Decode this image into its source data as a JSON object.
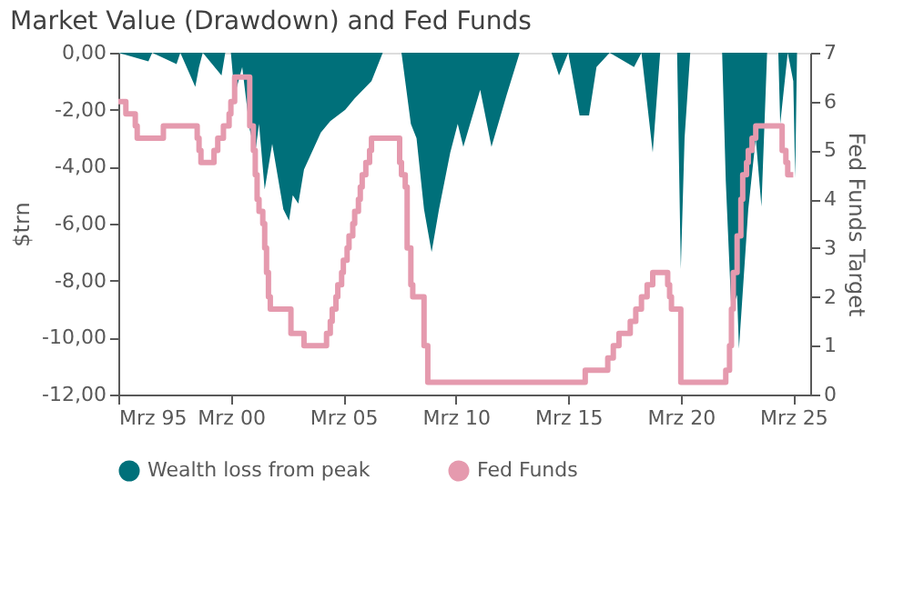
{
  "chart_data": {
    "type": "area",
    "title": "Market Value (Drawdown) and Fed Funds",
    "ylabel": "$trn",
    "y2label": "Fed Funds Target",
    "xlim": [
      "1995-03",
      "2025-12"
    ],
    "xticks": [
      {
        "value": "1995-03",
        "label": "Mrz 95"
      },
      {
        "value": "2000-03",
        "label": "Mrz 00"
      },
      {
        "value": "2005-03",
        "label": "Mrz 05"
      },
      {
        "value": "2010-03",
        "label": "Mrz 10"
      },
      {
        "value": "2015-03",
        "label": "Mrz 15"
      },
      {
        "value": "2020-03",
        "label": "Mrz 20"
      },
      {
        "value": "2025-03",
        "label": "Mrz 25"
      }
    ],
    "ylim": [
      -12,
      0
    ],
    "yticks": [
      {
        "value": 0,
        "label": "0,00"
      },
      {
        "value": -2,
        "label": "-2,00"
      },
      {
        "value": -4,
        "label": "-4,00"
      },
      {
        "value": -6,
        "label": "-6,00"
      },
      {
        "value": -8,
        "label": "-8,00"
      },
      {
        "value": -10,
        "label": "-10,00"
      },
      {
        "value": -12,
        "label": "-12,00"
      }
    ],
    "y2lim": [
      0,
      7
    ],
    "y2ticks": [
      0,
      1,
      2,
      3,
      4,
      5,
      6,
      7
    ],
    "grid": false,
    "legend": "bottom",
    "series": [
      {
        "name": "Wealth loss from peak",
        "color": "#00707a",
        "x": [
          "1995-03",
          "1996-07",
          "1996-09",
          "1997-10",
          "1997-12",
          "1998-08",
          "1998-10",
          "1998-12",
          "1999-10",
          "1999-12",
          "2000-03",
          "2000-05",
          "2000-09",
          "2001-01",
          "2001-04",
          "2001-06",
          "2001-09",
          "2002-01",
          "2002-07",
          "2002-10",
          "2002-12",
          "2003-03",
          "2003-06",
          "2004-03",
          "2004-08",
          "2005-04",
          "2005-09",
          "2006-06",
          "2006-12",
          "2007-10",
          "2008-03",
          "2008-06",
          "2008-10",
          "2009-02",
          "2009-06",
          "2009-12",
          "2010-04",
          "2010-07",
          "2011-04",
          "2011-10",
          "2012-06",
          "2013-01",
          "2014-06",
          "2014-10",
          "2015-03",
          "2015-09",
          "2016-02",
          "2016-06",
          "2017-01",
          "2018-02",
          "2018-06",
          "2018-12",
          "2019-04",
          "2020-01",
          "2020-03",
          "2020-05",
          "2020-08",
          "2021-06",
          "2022-01",
          "2022-03",
          "2022-06",
          "2022-09",
          "2022-10",
          "2023-03",
          "2023-07",
          "2023-10",
          "2024-01",
          "2024-07",
          "2024-08",
          "2024-12",
          "2025-03",
          "2025-04",
          "2025-05"
        ],
        "values": [
          0,
          -0.3,
          0,
          -0.4,
          0,
          -1.2,
          -0.5,
          0,
          -0.8,
          0,
          0,
          -1.5,
          -0.5,
          -2.7,
          -3.5,
          -2.5,
          -4.8,
          -3.2,
          -5.5,
          -5.9,
          -5.0,
          -5.3,
          -4.1,
          -2.8,
          -2.4,
          -2.0,
          -1.6,
          -1.0,
          0,
          0,
          -2.5,
          -3.0,
          -5.5,
          -7.0,
          -5.5,
          -3.5,
          -2.5,
          -3.3,
          -1.3,
          -3.3,
          -1.5,
          0,
          0,
          -0.8,
          0,
          -2.2,
          -2.2,
          -0.5,
          0,
          -0.5,
          0,
          -3.5,
          0,
          0,
          -7.6,
          -3.0,
          0,
          0,
          0,
          -4.5,
          -9.1,
          -8.5,
          -10.4,
          -5.5,
          -3.0,
          -5.4,
          0,
          0,
          -2.5,
          0,
          -1.0,
          -4.4,
          0
        ]
      },
      {
        "name": "Fed Funds",
        "type": "step",
        "axis": "y2",
        "color": "#e59aae",
        "x": [
          "1995-03",
          "1995-07",
          "1995-12",
          "1996-01",
          "1997-03",
          "1998-09",
          "1998-10",
          "1998-11",
          "1999-06",
          "1999-08",
          "1999-11",
          "2000-02",
          "2000-03",
          "2000-05",
          "2001-01",
          "2001-03",
          "2001-04",
          "2001-05",
          "2001-06",
          "2001-08",
          "2001-09",
          "2001-10",
          "2001-11",
          "2001-12",
          "2002-11",
          "2003-06",
          "2004-06",
          "2004-08",
          "2004-09",
          "2004-11",
          "2004-12",
          "2005-02",
          "2005-03",
          "2005-05",
          "2005-06",
          "2005-08",
          "2005-09",
          "2005-11",
          "2005-12",
          "2006-01",
          "2006-03",
          "2006-05",
          "2006-06",
          "2007-09",
          "2007-10",
          "2007-12",
          "2008-01",
          "2008-03",
          "2008-04",
          "2008-10",
          "2008-12",
          "2015-12",
          "2016-12",
          "2017-03",
          "2017-06",
          "2017-12",
          "2018-03",
          "2018-06",
          "2018-09",
          "2018-12",
          "2019-08",
          "2019-09",
          "2019-10",
          "2020-03",
          "2022-03",
          "2022-05",
          "2022-06",
          "2022-07",
          "2022-09",
          "2022-11",
          "2022-12",
          "2023-02",
          "2023-03",
          "2023-05",
          "2023-07",
          "2024-09",
          "2024-11",
          "2024-12",
          "2025-03"
        ],
        "values": [
          6.0,
          5.75,
          5.5,
          5.25,
          5.5,
          5.25,
          5.0,
          4.75,
          5.0,
          5.25,
          5.5,
          5.75,
          6.0,
          6.5,
          5.5,
          5.0,
          4.5,
          4.0,
          3.75,
          3.5,
          3.0,
          2.5,
          2.0,
          1.75,
          1.25,
          1.0,
          1.25,
          1.5,
          1.75,
          2.0,
          2.25,
          2.5,
          2.75,
          3.0,
          3.25,
          3.5,
          3.75,
          4.0,
          4.25,
          4.5,
          4.75,
          5.0,
          5.25,
          4.75,
          4.5,
          4.25,
          3.0,
          2.25,
          2.0,
          1.0,
          0.25,
          0.5,
          0.75,
          1.0,
          1.25,
          1.5,
          1.75,
          2.0,
          2.25,
          2.5,
          2.25,
          2.0,
          1.75,
          0.25,
          0.5,
          1.0,
          1.75,
          2.5,
          3.25,
          4.0,
          4.5,
          4.75,
          5.0,
          5.25,
          5.5,
          5.0,
          4.75,
          4.5,
          4.5
        ]
      }
    ]
  }
}
